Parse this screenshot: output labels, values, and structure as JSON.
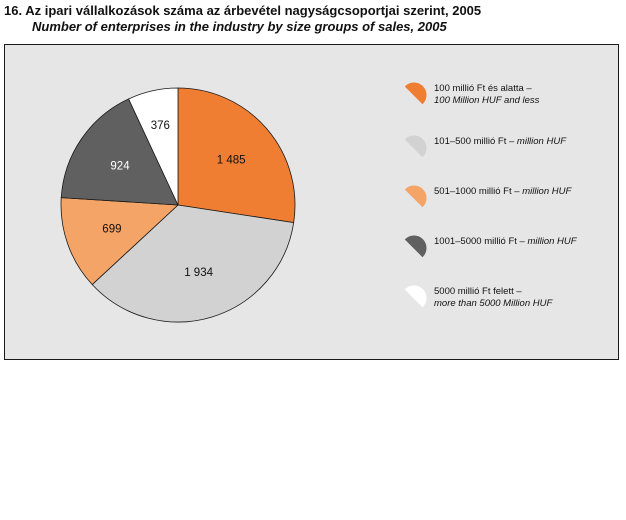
{
  "header": {
    "title_hu": "16. Az ipari vállalkozások száma az árbevétel nagyságcsoportjai szerint, 2005",
    "title_en": "Number of enterprises in the industry by size groups of sales, 2005"
  },
  "chart_data": {
    "type": "pie",
    "title": "16. Az ipari vállalkozások száma az árbevétel nagyságcsoportjai szerint, 2005",
    "subtitle": "Number of enterprises in the industry by size groups of sales, 2005",
    "start": "12 o'clock, clockwise",
    "legend_position": "right",
    "slices": [
      {
        "label": "100 millió Ft és alatta – 100 Million HUF and less",
        "value": 1485,
        "value_label": "1 485",
        "color": "#f07e32"
      },
      {
        "label": "101–500 millió Ft – million HUF",
        "value": 1934,
        "value_label": "1 934",
        "color": "#d2d2d2"
      },
      {
        "label": "501–1000 millió Ft – million HUF",
        "value": 699,
        "value_label": "699",
        "color": "#f4a466"
      },
      {
        "label": "1001–5000 millió Ft – million HUF",
        "value": 924,
        "value_label": "924",
        "color": "#606060"
      },
      {
        "label": "5000 millió Ft felett – more than 5000 Million HUF",
        "value": 376,
        "value_label": "376",
        "color": "#ffffff"
      }
    ]
  },
  "legend": [
    {
      "hu": "100 millió Ft és alatta –",
      "en": "100 Million HUF and less",
      "color": "#f07e32"
    },
    {
      "hu": "101–500 millió Ft – ",
      "en": "million HUF",
      "color": "#d2d2d2"
    },
    {
      "hu": "501–1000 millió Ft – ",
      "en": "million HUF",
      "color": "#f4a466"
    },
    {
      "hu": "1001–5000 millió Ft – ",
      "en": "million HUF",
      "color": "#606060"
    },
    {
      "hu": "5000 millió Ft felett –",
      "en": "more than 5000 Million HUF",
      "color": "#ffffff"
    }
  ]
}
